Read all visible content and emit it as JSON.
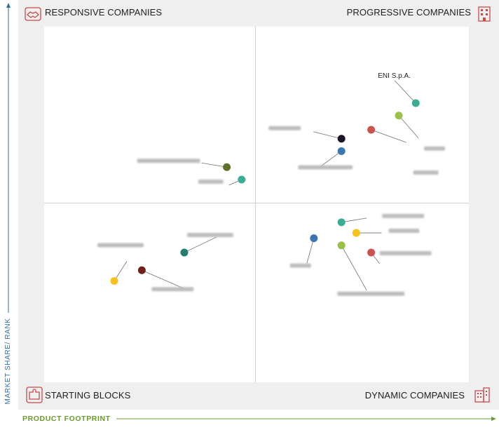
{
  "quadrants": {
    "responsive": "RESPONSIVE COMPANIES",
    "progressive": "PROGRESSIVE COMPANIES",
    "starting": "STARTING BLOCKS",
    "dynamic": "DYNAMIC COMPANIES"
  },
  "axes": {
    "y_label": "MARKET SHARE/ RANK",
    "x_label": "PRODUCT FOOTPRINT"
  },
  "colors": {
    "teal": "#3aae94",
    "olive_green": "#9abf4a",
    "red": "#cc524f",
    "black": "#1d1326",
    "blue": "#3b76b0",
    "dark_olive": "#5e722b",
    "dark_teal": "#227f6c",
    "yellow": "#f6c21b",
    "dark_red": "#6e2019",
    "axis_blue": "#2e6da4",
    "axis_green": "#6a9a2e",
    "icon_red": "#c8494a"
  },
  "chart_data": {
    "type": "scatter",
    "title": "",
    "xlabel": "PRODUCT FOOTPRINT",
    "ylabel": "MARKET SHARE/ RANK",
    "xlim": [
      0,
      100
    ],
    "ylim": [
      0,
      100
    ],
    "grid": false,
    "points": [
      {
        "label": "ENI S.p.A.",
        "x": 87.5,
        "y": 78.5,
        "color": "#3aae94",
        "blurred": false
      },
      {
        "label": "",
        "x": 83.5,
        "y": 75.0,
        "color": "#9abf4a",
        "blurred": true
      },
      {
        "label": "",
        "x": 77.0,
        "y": 71.0,
        "color": "#cc524f",
        "blurred": true
      },
      {
        "label": "",
        "x": 70.0,
        "y": 68.5,
        "color": "#1d1326",
        "blurred": true
      },
      {
        "label": "",
        "x": 70.0,
        "y": 65.0,
        "color": "#3b76b0",
        "blurred": true
      },
      {
        "label": "",
        "x": 43.0,
        "y": 60.5,
        "color": "#5e722b",
        "blurred": true
      },
      {
        "label": "",
        "x": 46.5,
        "y": 57.0,
        "color": "#3aae94",
        "blurred": true
      },
      {
        "label": "",
        "x": 70.0,
        "y": 45.0,
        "color": "#3aae94",
        "blurred": true
      },
      {
        "label": "",
        "x": 73.5,
        "y": 42.0,
        "color": "#f6c21b",
        "blurred": true
      },
      {
        "label": "",
        "x": 63.5,
        "y": 40.5,
        "color": "#3b76b0",
        "blurred": true
      },
      {
        "label": "",
        "x": 70.0,
        "y": 38.5,
        "color": "#9abf4a",
        "blurred": true
      },
      {
        "label": "",
        "x": 77.0,
        "y": 36.5,
        "color": "#cc524f",
        "blurred": true
      },
      {
        "label": "",
        "x": 33.0,
        "y": 36.5,
        "color": "#227f6c",
        "blurred": true
      },
      {
        "label": "",
        "x": 23.0,
        "y": 31.5,
        "color": "#6e2019",
        "blurred": true
      },
      {
        "label": "",
        "x": 16.5,
        "y": 28.5,
        "color": "#f6c21b",
        "blurred": true
      }
    ]
  }
}
